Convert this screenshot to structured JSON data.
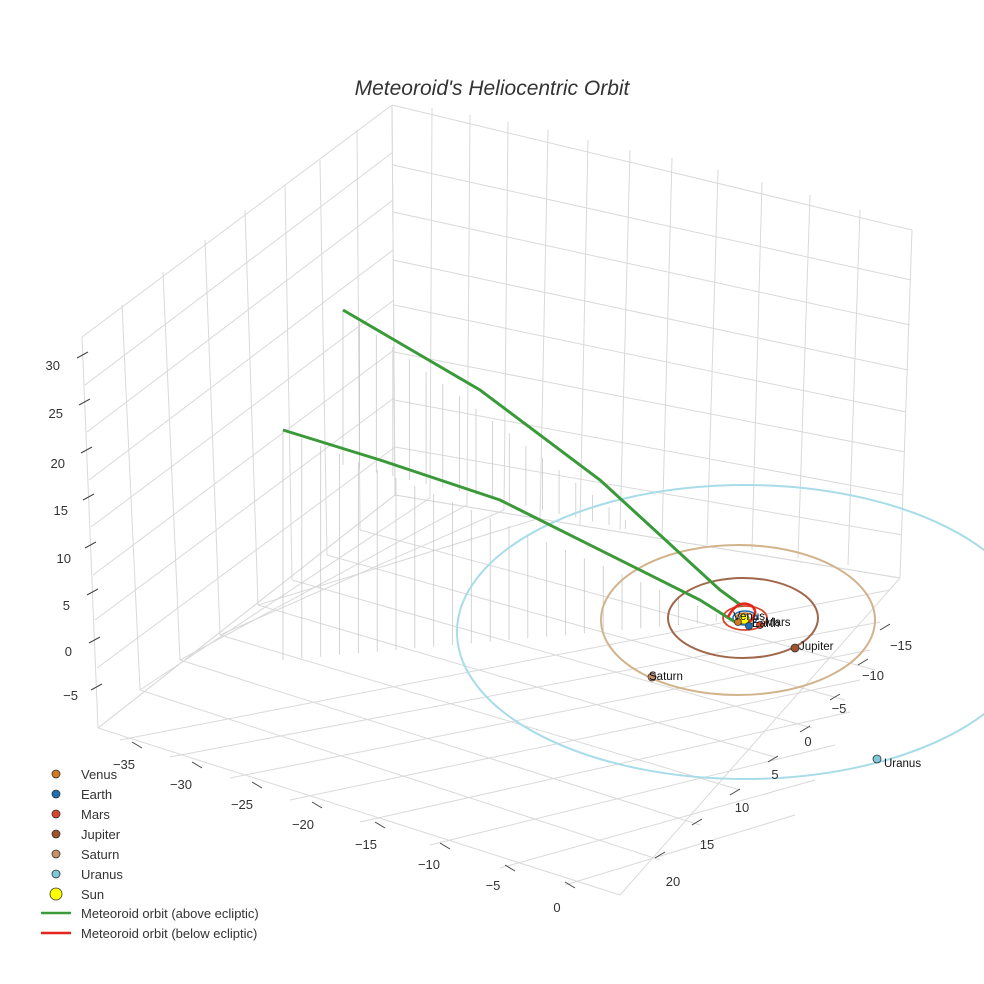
{
  "chart_data": {
    "type": "scatter3d",
    "title": "Meteoroid's Heliocentric Orbit",
    "axes": {
      "x": {
        "ticks": [
          "−35",
          "−30",
          "−25",
          "−20",
          "−15",
          "−10",
          "−5",
          "0"
        ]
      },
      "y": {
        "ticks": [
          "−15",
          "−10",
          "−5",
          "0",
          "5",
          "10",
          "15",
          "20"
        ]
      },
      "z": {
        "ticks": [
          "30",
          "25",
          "20",
          "15",
          "10",
          "5",
          "0",
          "−5"
        ]
      },
      "grid": true
    },
    "planets": [
      {
        "name": "Venus",
        "color": "#D4791E"
      },
      {
        "name": "Earth",
        "color": "#1F6FB5"
      },
      {
        "name": "Mars",
        "color": "#D8452B"
      },
      {
        "name": "Jupiter",
        "color": "#A0522D"
      },
      {
        "name": "Saturn",
        "color": "#C8916A"
      },
      {
        "name": "Uranus",
        "color": "#7EC8DC"
      }
    ],
    "sun": {
      "name": "Sun",
      "color": "#FFFF00"
    },
    "orbits": [
      {
        "name": "Meteoroid orbit (above ecliptic)",
        "color": "#3A9A3A"
      },
      {
        "name": "Meteoroid orbit (below ecliptic)",
        "color": "#E8231E"
      }
    ],
    "legend_position": "bottom-left"
  }
}
